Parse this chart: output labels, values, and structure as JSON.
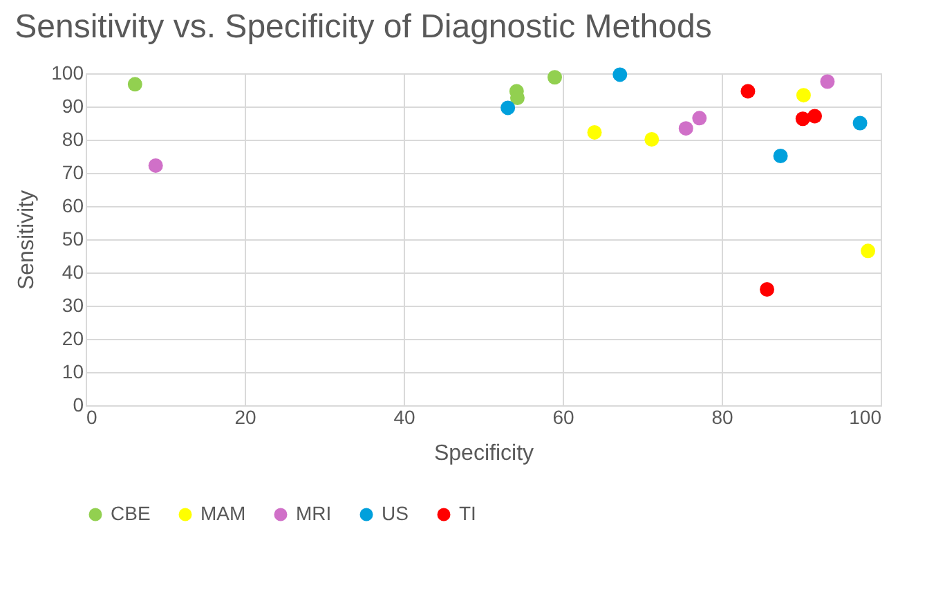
{
  "chart_data": {
    "type": "scatter",
    "title": "Sensitivity vs. Specificity of Diagnostic Methods",
    "xlabel": "Specificity",
    "ylabel": "Sensitivity",
    "xlim": [
      0,
      100
    ],
    "xticks": [
      0,
      20,
      40,
      60,
      80,
      100
    ],
    "ylim": [
      0,
      100
    ],
    "yticks": [
      0,
      10,
      20,
      30,
      40,
      50,
      60,
      70,
      80,
      90,
      100
    ],
    "grid": true,
    "legend": "bottom",
    "marker": "circle",
    "series": [
      {
        "name": "CBE",
        "color": "#92d050",
        "x": [
          6.2,
          54.2,
          54.3,
          59
        ],
        "values": [
          96.7,
          94.6,
          92.6,
          98.8
        ]
      },
      {
        "name": "MAM",
        "color": "#ffff00",
        "x": [
          64,
          71.2,
          90.3,
          98.4
        ],
        "values": [
          82.2,
          80.1,
          93.4,
          46.5
        ]
      },
      {
        "name": "MRI",
        "color": "#d070c8",
        "x": [
          8.8,
          75.5,
          77.2,
          93.3
        ],
        "values": [
          72.2,
          83.4,
          86.5,
          97.5
        ]
      },
      {
        "name": "US",
        "color": "#00a0dc",
        "x": [
          53.1,
          67.2,
          87.4,
          97.4
        ],
        "values": [
          89.6,
          99.6,
          75.1,
          85
        ]
      },
      {
        "name": "TI",
        "color": "#ff0000",
        "x": [
          83.3,
          90.2,
          91.7,
          85.7
        ],
        "values": [
          94.6,
          86.3,
          87.1,
          34.9
        ]
      }
    ]
  }
}
